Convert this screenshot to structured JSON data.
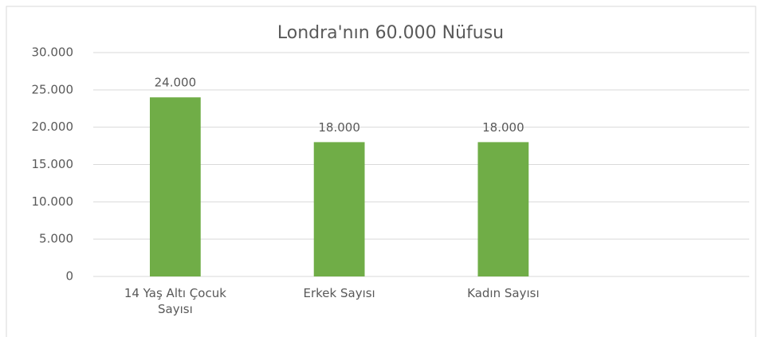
{
  "chart_data": {
    "type": "bar",
    "title": "Londra'nın 60.000 Nüfusu",
    "categories": [
      "14 Yaş Altı Çocuk Sayısı",
      "Erkek Sayısı",
      "Kadın Sayısı",
      null
    ],
    "values": [
      24000,
      18000,
      18000,
      null
    ],
    "value_labels": [
      "24.000",
      "18.000",
      "18.000",
      null
    ],
    "color": "#70ad47",
    "ylim": [
      0,
      30000
    ],
    "yticks": [
      0,
      {
        "value": 5000,
        "label": "5.000"
      },
      {
        "value": 10000,
        "label": "10.000"
      },
      {
        "value": 15000,
        "label": "15.000"
      },
      {
        "value": 20000,
        "label": "20.000"
      },
      {
        "value": 25000,
        "label": "25.000"
      },
      {
        "value": 30000,
        "label": "30.000"
      }
    ],
    "grid": true
  }
}
